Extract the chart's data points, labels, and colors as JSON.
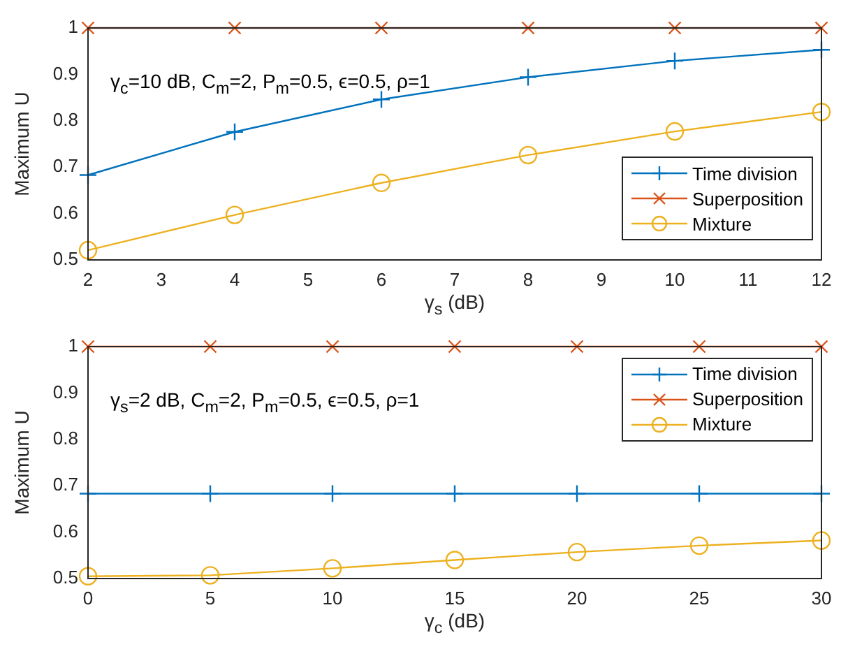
{
  "chart_data": [
    {
      "type": "line",
      "xlabel": "γ$_{s}$ (dB)",
      "ylabel": "Maximum U",
      "x": [
        2,
        4,
        6,
        8,
        10,
        12
      ],
      "xlim": [
        2,
        12
      ],
      "xticks": [
        2,
        3,
        4,
        5,
        6,
        7,
        8,
        9,
        10,
        11,
        12
      ],
      "ylim": [
        0.5,
        1
      ],
      "yticks": [
        0.5,
        0.6,
        0.7,
        0.8,
        0.9,
        1
      ],
      "grid": false,
      "legend": "bottom right",
      "annotations": [
        "γ$_{c}$=10 dB, C$_{m}$=2, P$_{m}$=0.5, ϵ=0.5, ρ=1"
      ],
      "series": [
        {
          "name": "Time division",
          "color": "#0072bd",
          "marker": "cross",
          "values": [
            0.683,
            0.776,
            0.846,
            0.894,
            0.929,
            0.953
          ]
        },
        {
          "name": "Superposition",
          "color": "#d95319",
          "marker": "x",
          "values": [
            1,
            1,
            1,
            1,
            1,
            1
          ]
        },
        {
          "name": "Mixture",
          "color": "#edb120",
          "marker": "circle",
          "values": [
            0.521,
            0.597,
            0.666,
            0.726,
            0.777,
            0.819
          ]
        }
      ]
    },
    {
      "type": "line",
      "xlabel": "γ$_{c}$ (dB)",
      "ylabel": "Maximum U",
      "x": [
        0,
        5,
        10,
        15,
        20,
        25,
        30
      ],
      "xlim": [
        0,
        30
      ],
      "xticks": [
        0,
        5,
        10,
        15,
        20,
        25,
        30
      ],
      "ylim": [
        0.5,
        1
      ],
      "yticks": [
        0.5,
        0.6,
        0.7,
        0.8,
        0.9,
        1
      ],
      "grid": false,
      "legend": "top right",
      "annotations": [
        "γ$_{s}$=2 dB, C$_{m}$=2, P$_{m}$=0.5, ϵ=0.5, ρ=1"
      ],
      "series": [
        {
          "name": "Time division",
          "color": "#0072bd",
          "marker": "cross",
          "values": [
            0.683,
            0.683,
            0.683,
            0.683,
            0.683,
            0.683,
            0.683
          ]
        },
        {
          "name": "Superposition",
          "color": "#d95319",
          "marker": "x",
          "values": [
            1,
            1,
            1,
            1,
            1,
            1,
            1
          ]
        },
        {
          "name": "Mixture",
          "color": "#edb120",
          "marker": "circle",
          "values": [
            0.505,
            0.507,
            0.522,
            0.54,
            0.557,
            0.571,
            0.582
          ]
        }
      ]
    }
  ]
}
